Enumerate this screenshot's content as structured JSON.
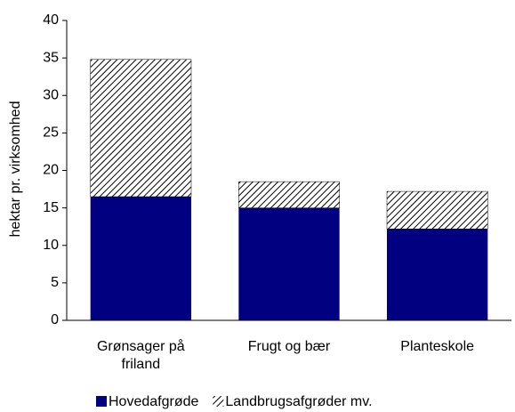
{
  "chart_data": {
    "type": "stacked_bar",
    "y_label": "hektar pr. virksomhed",
    "categories": [
      "Grønsager på friland",
      "Frugt og bær",
      "Planteskole"
    ],
    "series": [
      {
        "name": "Hovedafgrøde",
        "color": "#000080",
        "values": [
          16.5,
          15,
          12.2
        ]
      },
      {
        "name": "Landbrugsafgrøder mv.",
        "color": "hatch",
        "values": [
          18.3,
          3.5,
          5.0
        ]
      }
    ],
    "ylim": [
      0,
      40
    ],
    "yticks": [
      0,
      5,
      10,
      15,
      20,
      25,
      30,
      35,
      40
    ],
    "legend": "bottom"
  }
}
